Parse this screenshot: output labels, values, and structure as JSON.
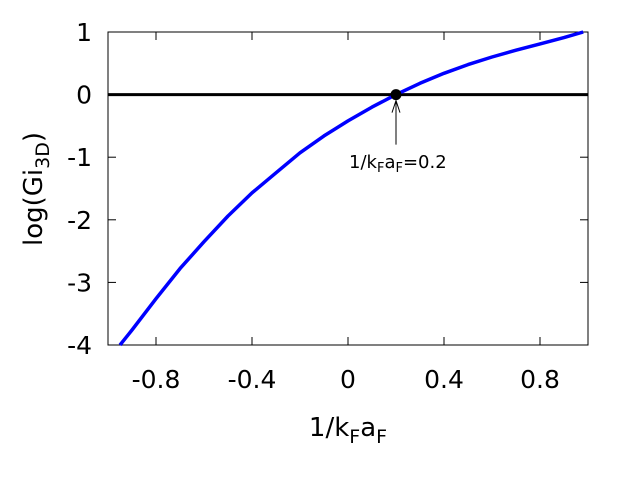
{
  "chart_data": {
    "type": "line",
    "xlabel": {
      "main": "1/k",
      "sub1": "F",
      "mid": "a",
      "sub2": "F"
    },
    "ylabel": {
      "main": "log(Gi",
      "sub": "3D",
      "close": ")"
    },
    "xlim": [
      -1.0,
      1.0
    ],
    "ylim": [
      -4,
      1
    ],
    "x_ticks": [
      -0.8,
      -0.4,
      0,
      0.4,
      0.8
    ],
    "x_tick_labels": [
      "-0.8",
      "-0.4",
      "0",
      "0.4",
      "0.8"
    ],
    "y_ticks": [
      -4,
      -3,
      -2,
      -1,
      0,
      1
    ],
    "y_tick_labels": [
      "-4",
      "-3",
      "-2",
      "-1",
      "0",
      "1"
    ],
    "grid": false,
    "reference_line": {
      "y": 0,
      "color": "#000000"
    },
    "series": [
      {
        "color": "#0000ff",
        "x": [
          -0.95,
          -0.9,
          -0.8,
          -0.7,
          -0.6,
          -0.5,
          -0.4,
          -0.3,
          -0.2,
          -0.1,
          0.0,
          0.1,
          0.2,
          0.3,
          0.4,
          0.5,
          0.6,
          0.7,
          0.8,
          0.9,
          0.98
        ],
        "y": [
          -4.0,
          -3.76,
          -3.26,
          -2.78,
          -2.35,
          -1.94,
          -1.57,
          -1.25,
          -0.93,
          -0.66,
          -0.42,
          -0.2,
          0.0,
          0.18,
          0.34,
          0.48,
          0.6,
          0.71,
          0.81,
          0.91,
          1.0
        ]
      }
    ],
    "annotation": {
      "point": {
        "x": 0.2,
        "y": 0.0
      },
      "text_main": "1/k",
      "text_sub1": "F",
      "text_mid": "a",
      "text_sub2": "F",
      "text_tail": "=0.2"
    }
  }
}
